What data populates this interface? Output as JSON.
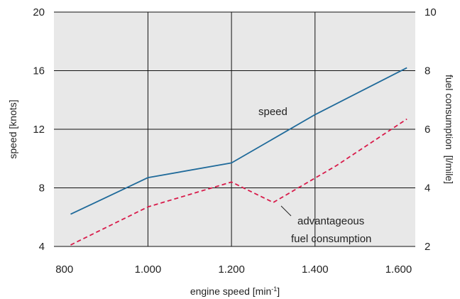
{
  "chart_data": {
    "type": "line",
    "x": [
      800,
      1000,
      1200,
      1300,
      1450,
      1620
    ],
    "xlabel_main": "engine speed [min",
    "xlabel_sup": "-1",
    "xlabel_close": "]",
    "xlim": [
      775,
      1640
    ],
    "x_ticks": [
      {
        "value": 800,
        "label": "800"
      },
      {
        "value": 1000,
        "label": "1.000"
      },
      {
        "value": 1200,
        "label": "1.200"
      },
      {
        "value": 1400,
        "label": "1.400"
      },
      {
        "value": 1600,
        "label": "1.600"
      }
    ],
    "x_grid": [
      1000,
      1200,
      1400
    ],
    "ylabel_left": "speed [knots]",
    "ylim_left": [
      4,
      20
    ],
    "y_ticks_left": [
      {
        "value": 4,
        "label": "4"
      },
      {
        "value": 8,
        "label": "8"
      },
      {
        "value": 12,
        "label": "12"
      },
      {
        "value": 16,
        "label": "16"
      },
      {
        "value": 20,
        "label": "20"
      }
    ],
    "ylabel_right": "fuel consumption  [l/mile]",
    "ylim_right": [
      2,
      10
    ],
    "y_ticks_right": [
      {
        "value": 2,
        "label": "2"
      },
      {
        "value": 4,
        "label": "4"
      },
      {
        "value": 6,
        "label": "6"
      },
      {
        "value": 8,
        "label": "8"
      },
      {
        "value": 10,
        "label": "10"
      }
    ],
    "y_grid": [
      8,
      12,
      16
    ],
    "grid": true,
    "plot_background": "#e8e8e8",
    "series": [
      {
        "axis": "left",
        "style": "solid",
        "color": "#1f6a9a",
        "points": [
          [
            815,
            6.2
          ],
          [
            1000,
            8.7
          ],
          [
            1200,
            9.7
          ],
          [
            1400,
            13.0
          ],
          [
            1620,
            16.2
          ]
        ]
      },
      {
        "axis": "right",
        "style": "dashed",
        "color": "#d81b4a",
        "points": [
          [
            815,
            2.05
          ],
          [
            1000,
            3.35
          ],
          [
            1200,
            4.2
          ],
          [
            1300,
            3.5
          ],
          [
            1450,
            4.75
          ],
          [
            1620,
            6.35
          ]
        ]
      }
    ],
    "annotations": {
      "speed": "speed",
      "fuel_line1": "advantageous",
      "fuel_line2": "fuel consumption"
    }
  }
}
